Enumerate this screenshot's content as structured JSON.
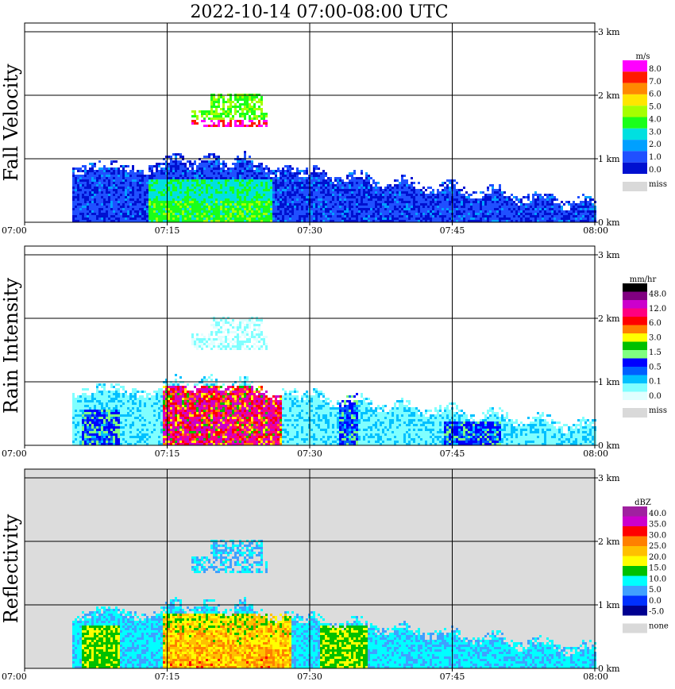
{
  "title": "2022-10-14   07:00-08:00 UTC",
  "chart_data": [
    {
      "type": "heatmap",
      "ylabel": "Fall Velocity",
      "x_ticks": [
        "07:00",
        "07:15",
        "07:30",
        "07:45",
        "08:00"
      ],
      "y_ticks": [
        "0 km",
        "1 km",
        "2 km",
        "3 km"
      ],
      "xlim": [
        "07:00",
        "08:00"
      ],
      "ylim_km": [
        0,
        3
      ],
      "grid": true,
      "legend": {
        "unit": "m/s",
        "labels": [
          "8.0",
          "7.0",
          "6.0",
          "5.0",
          "4.0",
          "3.0",
          "2.0",
          "1.0",
          "0.0"
        ],
        "colors": [
          "#ff00ff",
          "#ff1a00",
          "#ff8a00",
          "#ffe600",
          "#a6ff00",
          "#1aff1a",
          "#00e0e0",
          "#00a0ff",
          "#2050ff",
          "#0010d0"
        ],
        "miss_label": "miss",
        "miss_color": "#d9d9d9"
      }
    },
    {
      "type": "heatmap",
      "ylabel": "Rain Intensity",
      "x_ticks": [
        "07:00",
        "07:15",
        "07:30",
        "07:45",
        "08:00"
      ],
      "y_ticks": [
        "0 km",
        "1 km",
        "2 km",
        "3 km"
      ],
      "xlim": [
        "07:00",
        "08:00"
      ],
      "ylim_km": [
        0,
        3
      ],
      "grid": true,
      "legend": {
        "unit": "mm/hr",
        "labels": [
          "48.0",
          "12.0",
          "6.0",
          "3.0",
          "1.5",
          "0.5",
          "0.1",
          "0.0"
        ],
        "colors": [
          "#000000",
          "#800080",
          "#cc00cc",
          "#ff0080",
          "#ff0000",
          "#ff8000",
          "#ffff00",
          "#00c000",
          "#80ff80",
          "#0000ff",
          "#0060ff",
          "#00c0ff",
          "#80ffff",
          "#e0ffff"
        ],
        "miss_label": "miss",
        "miss_color": "#d9d9d9"
      }
    },
    {
      "type": "heatmap",
      "ylabel": "Reflectivity",
      "x_ticks": [
        "07:00",
        "07:15",
        "07:30",
        "07:45",
        "08:00"
      ],
      "y_ticks": [
        "0 km",
        "1 km",
        "2 km",
        "3 km"
      ],
      "xlim": [
        "07:00",
        "08:00"
      ],
      "ylim_km": [
        0,
        3
      ],
      "grid": true,
      "background": "#dcdcdc",
      "legend": {
        "unit": "dBZ",
        "labels": [
          "40.0",
          "35.0",
          "30.0",
          "25.0",
          "20.0",
          "15.0",
          "10.0",
          "5.0",
          "0.0",
          "-5.0"
        ],
        "colors": [
          "#a020a0",
          "#cc00cc",
          "#ff0000",
          "#ff8000",
          "#ffc000",
          "#ffff00",
          "#00c000",
          "#00ffff",
          "#40a0ff",
          "#0030ff",
          "#000090"
        ],
        "miss_label": "none",
        "miss_color": "#d9d9d9"
      }
    }
  ]
}
